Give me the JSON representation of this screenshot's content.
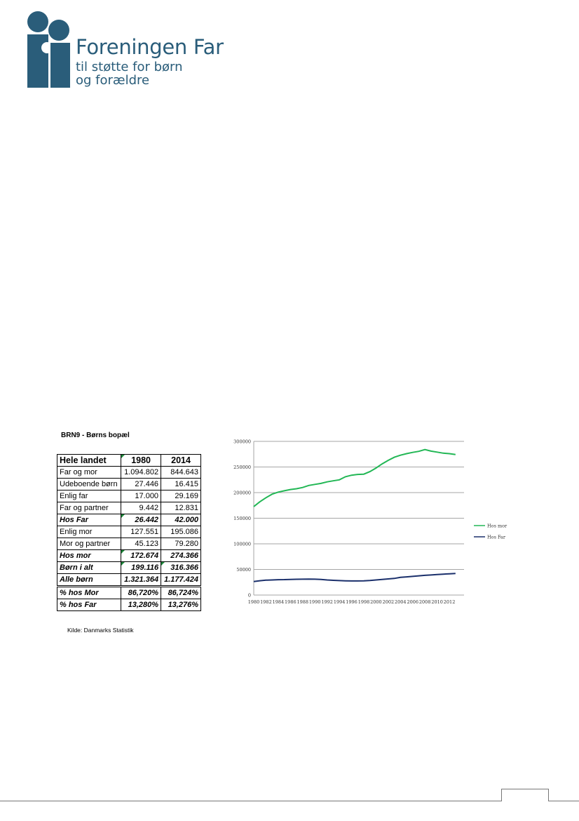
{
  "logo": {
    "org_name": "Foreningen Far",
    "tagline_line1": "til støtte for børn",
    "tagline_line2": "og forældre",
    "brand_color": "#2a5d7a"
  },
  "table": {
    "title": "BRN9 - Børns bopæl",
    "headers": [
      "Hele landet",
      "1980",
      "2014"
    ],
    "rows": [
      {
        "label": "Far og mor",
        "v1980": "1.094.802",
        "v2014": "844.643"
      },
      {
        "label": "Udeboende børn",
        "v1980": "27.446",
        "v2014": "16.415"
      },
      {
        "label": "Enlig far",
        "v1980": "17.000",
        "v2014": "29.169"
      },
      {
        "label": "Far og partner",
        "v1980": "9.442",
        "v2014": "12.831"
      },
      {
        "label": "Hos Far",
        "v1980": "26.442",
        "v2014": "42.000"
      },
      {
        "label": "Enlig mor",
        "v1980": "127.551",
        "v2014": "195.086"
      },
      {
        "label": "Mor og partner",
        "v1980": "45.123",
        "v2014": "79.280"
      },
      {
        "label": "Hos mor",
        "v1980": "172.674",
        "v2014": "274.366"
      },
      {
        "label": "Børn i alt",
        "v1980": "199.116",
        "v2014": "316.366"
      },
      {
        "label": "Alle børn",
        "v1980": "1.321.364",
        "v2014": "1.177.424"
      },
      {
        "label": "% hos Mor",
        "v1980": "86,720%",
        "v2014": "86,724%"
      },
      {
        "label": "% hos Far",
        "v1980": "13,280%",
        "v2014": "13,276%"
      }
    ],
    "source": "Kilde: Danmarks Statistik"
  },
  "chart_data": {
    "type": "line",
    "title": "",
    "xlabel": "",
    "ylabel": "",
    "x": [
      1980,
      1981,
      1982,
      1983,
      1984,
      1985,
      1986,
      1987,
      1988,
      1989,
      1990,
      1991,
      1992,
      1993,
      1994,
      1995,
      1996,
      1997,
      1998,
      1999,
      2000,
      2001,
      2002,
      2003,
      2004,
      2005,
      2006,
      2007,
      2008,
      2009,
      2010,
      2011,
      2012,
      2013
    ],
    "x_tick_labels": [
      "1980",
      "1982",
      "1984",
      "1986",
      "1988",
      "1990",
      "1992",
      "1994",
      "1996",
      "1998",
      "2000",
      "2002",
      "2004",
      "2006",
      "2008",
      "2010",
      "2012"
    ],
    "ylim": [
      0,
      300000
    ],
    "y_ticks": [
      0,
      50000,
      100000,
      150000,
      200000,
      250000,
      300000
    ],
    "y_tick_labels": [
      "0",
      "50000",
      "100000",
      "150000",
      "200000",
      "250000",
      "300000"
    ],
    "grid": true,
    "legend_position": "right",
    "series": [
      {
        "name": "Hos mor",
        "color": "#22b755",
        "values": [
          172674,
          182000,
          190000,
          197000,
          201000,
          203500,
          206000,
          207500,
          210000,
          214000,
          216000,
          218000,
          221000,
          223000,
          225000,
          231000,
          234000,
          235500,
          236000,
          241000,
          248000,
          256000,
          263000,
          269000,
          273000,
          276000,
          278500,
          280500,
          284000,
          281000,
          279000,
          277000,
          276000,
          274366
        ]
      },
      {
        "name": "Hos Far",
        "color": "#1a2f6b",
        "values": [
          26442,
          28000,
          29000,
          29500,
          30000,
          30200,
          30500,
          30800,
          31000,
          31200,
          31000,
          30500,
          29500,
          28800,
          28200,
          27800,
          27500,
          27600,
          27800,
          28500,
          29500,
          30500,
          31500,
          32500,
          34500,
          35500,
          36500,
          37500,
          38500,
          39200,
          40000,
          40800,
          41500,
          42000
        ]
      }
    ]
  }
}
